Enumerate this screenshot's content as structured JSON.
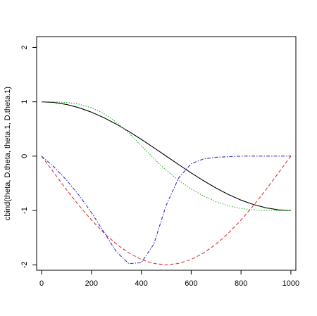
{
  "chart_data": {
    "type": "line",
    "title": "",
    "xlabel": "",
    "ylabel": "cbind(theta, D.theta, theta.1, D.theta.1)",
    "xlim": [
      -20,
      1020
    ],
    "ylim": [
      -2.1,
      2.2
    ],
    "xticks": [
      0,
      200,
      400,
      600,
      800,
      1000
    ],
    "yticks": [
      -2,
      -1,
      0,
      1,
      2
    ],
    "grid": false,
    "legend": "none",
    "series": [
      {
        "color": "#000000",
        "dash": "solid",
        "x": [
          0,
          50,
          100,
          150,
          200,
          250,
          300,
          350,
          400,
          450,
          500,
          550,
          600,
          650,
          700,
          750,
          800,
          850,
          900,
          950,
          1000
        ],
        "y": [
          1.0,
          0.988,
          0.951,
          0.891,
          0.809,
          0.707,
          0.588,
          0.454,
          0.309,
          0.156,
          0.0,
          -0.156,
          -0.309,
          -0.454,
          -0.588,
          -0.707,
          -0.809,
          -0.891,
          -0.951,
          -0.988,
          -1.0
        ]
      },
      {
        "color": "#dd3333",
        "dash": "dashed",
        "x": [
          0,
          50,
          100,
          150,
          200,
          250,
          300,
          350,
          400,
          450,
          500,
          550,
          600,
          650,
          700,
          750,
          800,
          850,
          900,
          950,
          1000
        ],
        "y": [
          0.0,
          -0.309,
          -0.618,
          -0.908,
          -1.176,
          -1.414,
          -1.618,
          -1.782,
          -1.902,
          -1.975,
          -2.0,
          -1.975,
          -1.902,
          -1.782,
          -1.618,
          -1.414,
          -1.176,
          -0.908,
          -0.618,
          -0.309,
          0.0
        ]
      },
      {
        "color": "#22bb22",
        "dash": "dotted",
        "x": [
          0,
          50,
          100,
          150,
          200,
          250,
          300,
          350,
          400,
          450,
          500,
          550,
          600,
          650,
          700,
          750,
          800,
          850,
          900,
          950,
          1000
        ],
        "y": [
          1.0,
          0.998,
          0.988,
          0.956,
          0.891,
          0.782,
          0.623,
          0.424,
          0.191,
          -0.043,
          -0.259,
          -0.446,
          -0.603,
          -0.733,
          -0.838,
          -0.914,
          -0.963,
          -0.989,
          -0.998,
          -1.0,
          -1.0
        ]
      },
      {
        "color": "#3333cc",
        "dash": "dashdot",
        "x": [
          0,
          50,
          100,
          150,
          200,
          250,
          300,
          350,
          400,
          450,
          500,
          550,
          600,
          650,
          700,
          750,
          800,
          850,
          900,
          950,
          1000
        ],
        "y": [
          0.0,
          -0.2,
          -0.44,
          -0.72,
          -1.04,
          -1.4,
          -1.76,
          -1.98,
          -1.96,
          -1.62,
          -0.9,
          -0.4,
          -0.14,
          -0.05,
          -0.02,
          -0.01,
          0.0,
          0.0,
          0.0,
          0.0,
          0.0
        ]
      }
    ]
  }
}
